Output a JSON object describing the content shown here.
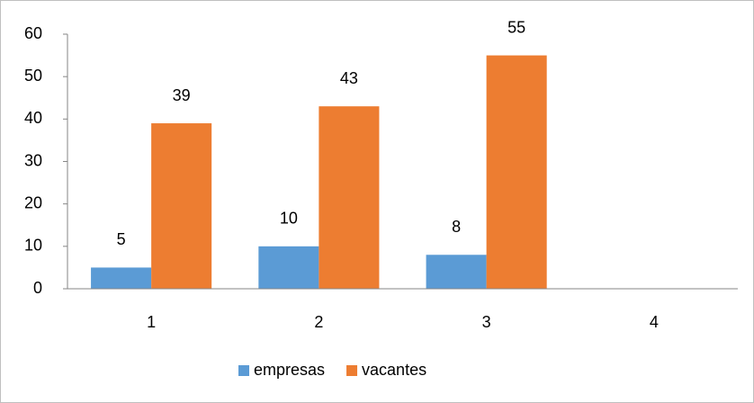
{
  "chart_data": {
    "type": "bar",
    "categories": [
      "1",
      "2",
      "3",
      "4"
    ],
    "series": [
      {
        "name": "empresas",
        "color": "#5b9bd5",
        "values": [
          5,
          10,
          8,
          null
        ]
      },
      {
        "name": "vacantes",
        "color": "#ed7d31",
        "values": [
          39,
          43,
          55,
          null
        ]
      }
    ],
    "ylim": [
      0,
      60
    ],
    "yticks": [
      0,
      10,
      20,
      30,
      40,
      50,
      60
    ],
    "grid": false,
    "legend": "bottom",
    "data_labels": true
  }
}
